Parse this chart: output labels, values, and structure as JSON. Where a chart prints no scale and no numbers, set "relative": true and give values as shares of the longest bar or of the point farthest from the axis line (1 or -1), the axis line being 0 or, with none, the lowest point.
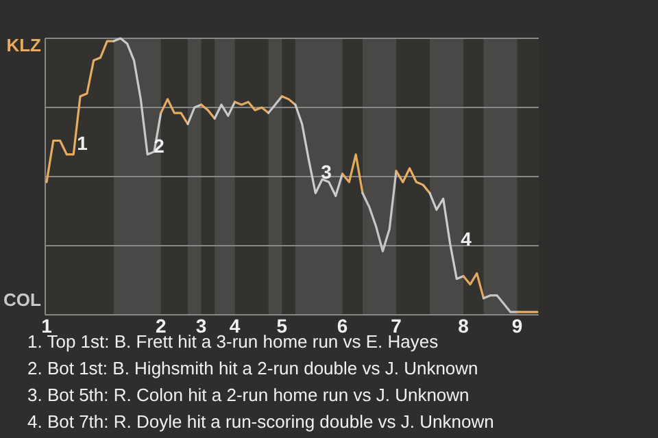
{
  "chart_data": {
    "type": "line",
    "relative": true,
    "grid": true,
    "marker": "none",
    "line_style": "solid",
    "categories": [
      "1",
      null,
      null,
      null,
      null,
      null,
      null,
      null,
      null,
      null,
      null,
      null,
      null,
      null,
      null,
      null,
      null,
      "2",
      null,
      null,
      null,
      null,
      null,
      "3",
      null,
      null,
      null,
      null,
      "4",
      null,
      null,
      null,
      null,
      null,
      null,
      "5",
      null,
      null,
      null,
      null,
      null,
      null,
      null,
      null,
      "6",
      null,
      null,
      null,
      null,
      null,
      null,
      null,
      "7",
      null,
      null,
      null,
      null,
      null,
      null,
      null,
      null,
      null,
      "8",
      null,
      null,
      null,
      null,
      null,
      null,
      null,
      "9",
      null,
      null,
      null
    ],
    "series": [
      {
        "color": "#e6ac62",
        "values": [
          0.48,
          0.63,
          0.63,
          0.58,
          0.58,
          0.79,
          0.8,
          0.92,
          0.93,
          0.99,
          0.99,
          null,
          null,
          null,
          null,
          null,
          null,
          null,
          null,
          null,
          null,
          null,
          null,
          null,
          null,
          null,
          null,
          null,
          null,
          null,
          null,
          null,
          null,
          null,
          null,
          null,
          null,
          null,
          null,
          null,
          null,
          null,
          null,
          null,
          null,
          null,
          null,
          null,
          null,
          null,
          null,
          null,
          null,
          null,
          null,
          null,
          null,
          null,
          null,
          null,
          null,
          null,
          null,
          null,
          null,
          null,
          null,
          null,
          null,
          null,
          null,
          null,
          null,
          null
        ]
      },
      {
        "color": "#c9c9c9",
        "values": [
          null,
          null,
          null,
          null,
          null,
          null,
          null,
          null,
          null,
          null,
          0.99,
          1,
          0.98,
          0.92,
          0.78,
          0.58,
          0.59,
          0.73,
          null,
          null,
          null,
          null,
          null,
          null,
          null,
          null,
          null,
          null,
          null,
          null,
          null,
          null,
          null,
          null,
          null,
          null,
          null,
          null,
          null,
          null,
          null,
          null,
          null,
          null,
          null,
          null,
          null,
          null,
          null,
          null,
          null,
          null,
          null,
          null,
          null,
          null,
          null,
          null,
          null,
          null,
          null,
          null,
          null,
          null,
          null,
          null,
          null,
          null,
          null,
          null,
          null,
          null,
          null,
          null
        ]
      },
      {
        "color": "#e5ab61",
        "values": [
          null,
          null,
          null,
          null,
          null,
          null,
          null,
          null,
          null,
          null,
          null,
          null,
          null,
          null,
          null,
          null,
          null,
          0.73,
          0.78,
          0.73,
          0.73,
          0.69,
          null,
          null,
          null,
          null,
          null,
          null,
          null,
          null,
          null,
          null,
          null,
          null,
          null,
          null,
          null,
          null,
          null,
          null,
          null,
          null,
          null,
          null,
          null,
          null,
          null,
          null,
          null,
          null,
          null,
          null,
          null,
          null,
          null,
          null,
          null,
          null,
          null,
          null,
          null,
          null,
          null,
          null,
          null,
          null,
          null,
          null,
          null,
          null,
          null,
          null,
          null,
          null
        ]
      },
      {
        "color": "#c8c8c8",
        "values": [
          null,
          null,
          null,
          null,
          null,
          null,
          null,
          null,
          null,
          null,
          null,
          null,
          null,
          null,
          null,
          null,
          null,
          null,
          null,
          null,
          null,
          0.69,
          0.75,
          0.76,
          null,
          null,
          null,
          null,
          null,
          null,
          null,
          null,
          null,
          null,
          null,
          null,
          null,
          null,
          null,
          null,
          null,
          null,
          null,
          null,
          null,
          null,
          null,
          null,
          null,
          null,
          null,
          null,
          null,
          null,
          null,
          null,
          null,
          null,
          null,
          null,
          null,
          null,
          null,
          null,
          null,
          null,
          null,
          null,
          null,
          null,
          null,
          null,
          null,
          null
        ]
      },
      {
        "color": "#e7ad63",
        "values": [
          null,
          null,
          null,
          null,
          null,
          null,
          null,
          null,
          null,
          null,
          null,
          null,
          null,
          null,
          null,
          null,
          null,
          null,
          null,
          null,
          null,
          null,
          null,
          0.76,
          0.74,
          0.71,
          null,
          null,
          null,
          null,
          null,
          null,
          null,
          null,
          null,
          null,
          null,
          null,
          null,
          null,
          null,
          null,
          null,
          null,
          null,
          null,
          null,
          null,
          null,
          null,
          null,
          null,
          null,
          null,
          null,
          null,
          null,
          null,
          null,
          null,
          null,
          null,
          null,
          null,
          null,
          null,
          null,
          null,
          null,
          null,
          null,
          null,
          null,
          null
        ]
      },
      {
        "color": "#cacaca",
        "values": [
          null,
          null,
          null,
          null,
          null,
          null,
          null,
          null,
          null,
          null,
          null,
          null,
          null,
          null,
          null,
          null,
          null,
          null,
          null,
          null,
          null,
          null,
          null,
          null,
          null,
          0.71,
          0.76,
          0.72,
          0.77,
          null,
          null,
          null,
          null,
          null,
          null,
          null,
          null,
          null,
          null,
          null,
          null,
          null,
          null,
          null,
          null,
          null,
          null,
          null,
          null,
          null,
          null,
          null,
          null,
          null,
          null,
          null,
          null,
          null,
          null,
          null,
          null,
          null,
          null,
          null,
          null,
          null,
          null,
          null,
          null,
          null,
          null,
          null,
          null,
          null
        ]
      },
      {
        "color": "#e4aa60",
        "values": [
          null,
          null,
          null,
          null,
          null,
          null,
          null,
          null,
          null,
          null,
          null,
          null,
          null,
          null,
          null,
          null,
          null,
          null,
          null,
          null,
          null,
          null,
          null,
          null,
          null,
          null,
          null,
          null,
          0.77,
          0.76,
          0.77,
          0.74,
          0.75,
          0.73,
          null,
          null,
          null,
          null,
          null,
          null,
          null,
          null,
          null,
          null,
          null,
          null,
          null,
          null,
          null,
          null,
          null,
          null,
          null,
          null,
          null,
          null,
          null,
          null,
          null,
          null,
          null,
          null,
          null,
          null,
          null,
          null,
          null,
          null,
          null,
          null,
          null,
          null,
          null,
          null
        ]
      },
      {
        "color": "#c7c7c7",
        "values": [
          null,
          null,
          null,
          null,
          null,
          null,
          null,
          null,
          null,
          null,
          null,
          null,
          null,
          null,
          null,
          null,
          null,
          null,
          null,
          null,
          null,
          null,
          null,
          null,
          null,
          null,
          null,
          null,
          null,
          null,
          null,
          null,
          null,
          0.73,
          0.76,
          0.79,
          null,
          null,
          null,
          null,
          null,
          null,
          null,
          null,
          null,
          null,
          null,
          null,
          null,
          null,
          null,
          null,
          null,
          null,
          null,
          null,
          null,
          null,
          null,
          null,
          null,
          null,
          null,
          null,
          null,
          null,
          null,
          null,
          null,
          null,
          null,
          null,
          null,
          null
        ]
      },
      {
        "color": "#e8ae64",
        "values": [
          null,
          null,
          null,
          null,
          null,
          null,
          null,
          null,
          null,
          null,
          null,
          null,
          null,
          null,
          null,
          null,
          null,
          null,
          null,
          null,
          null,
          null,
          null,
          null,
          null,
          null,
          null,
          null,
          null,
          null,
          null,
          null,
          null,
          null,
          null,
          0.79,
          0.78,
          0.76,
          null,
          null,
          null,
          null,
          null,
          null,
          null,
          null,
          null,
          null,
          null,
          null,
          null,
          null,
          null,
          null,
          null,
          null,
          null,
          null,
          null,
          null,
          null,
          null,
          null,
          null,
          null,
          null,
          null,
          null,
          null,
          null,
          null,
          null,
          null,
          null
        ]
      },
      {
        "color": "#cbcbcb",
        "values": [
          null,
          null,
          null,
          null,
          null,
          null,
          null,
          null,
          null,
          null,
          null,
          null,
          null,
          null,
          null,
          null,
          null,
          null,
          null,
          null,
          null,
          null,
          null,
          null,
          null,
          null,
          null,
          null,
          null,
          null,
          null,
          null,
          null,
          null,
          null,
          null,
          null,
          0.76,
          0.69,
          0.56,
          0.44,
          0.49,
          0.48,
          0.43,
          0.51,
          null,
          null,
          null,
          null,
          null,
          null,
          null,
          null,
          null,
          null,
          null,
          null,
          null,
          null,
          null,
          null,
          null,
          null,
          null,
          null,
          null,
          null,
          null,
          null,
          null,
          null,
          null,
          null,
          null
        ]
      },
      {
        "color": "#e3a95f",
        "values": [
          null,
          null,
          null,
          null,
          null,
          null,
          null,
          null,
          null,
          null,
          null,
          null,
          null,
          null,
          null,
          null,
          null,
          null,
          null,
          null,
          null,
          null,
          null,
          null,
          null,
          null,
          null,
          null,
          null,
          null,
          null,
          null,
          null,
          null,
          null,
          null,
          null,
          null,
          null,
          null,
          null,
          null,
          null,
          null,
          0.51,
          0.48,
          0.58,
          0.44,
          null,
          null,
          null,
          null,
          null,
          null,
          null,
          null,
          null,
          null,
          null,
          null,
          null,
          null,
          null,
          null,
          null,
          null,
          null,
          null,
          null,
          null,
          null,
          null,
          null,
          null
        ]
      },
      {
        "color": "#c6c6c6",
        "values": [
          null,
          null,
          null,
          null,
          null,
          null,
          null,
          null,
          null,
          null,
          null,
          null,
          null,
          null,
          null,
          null,
          null,
          null,
          null,
          null,
          null,
          null,
          null,
          null,
          null,
          null,
          null,
          null,
          null,
          null,
          null,
          null,
          null,
          null,
          null,
          null,
          null,
          null,
          null,
          null,
          null,
          null,
          null,
          null,
          null,
          null,
          null,
          0.44,
          0.39,
          0.32,
          0.23,
          0.31,
          0.52,
          null,
          null,
          null,
          null,
          null,
          null,
          null,
          null,
          null,
          null,
          null,
          null,
          null,
          null,
          null,
          null,
          null,
          null,
          null,
          null,
          null
        ]
      },
      {
        "color": "#e9af65",
        "values": [
          null,
          null,
          null,
          null,
          null,
          null,
          null,
          null,
          null,
          null,
          null,
          null,
          null,
          null,
          null,
          null,
          null,
          null,
          null,
          null,
          null,
          null,
          null,
          null,
          null,
          null,
          null,
          null,
          null,
          null,
          null,
          null,
          null,
          null,
          null,
          null,
          null,
          null,
          null,
          null,
          null,
          null,
          null,
          null,
          null,
          null,
          null,
          null,
          null,
          null,
          null,
          null,
          0.52,
          0.48,
          0.53,
          0.48,
          0.47,
          0.44,
          null,
          null,
          null,
          null,
          null,
          null,
          null,
          null,
          null,
          null,
          null,
          null,
          null,
          null,
          null,
          null
        ]
      },
      {
        "color": "#cccccc",
        "values": [
          null,
          null,
          null,
          null,
          null,
          null,
          null,
          null,
          null,
          null,
          null,
          null,
          null,
          null,
          null,
          null,
          null,
          null,
          null,
          null,
          null,
          null,
          null,
          null,
          null,
          null,
          null,
          null,
          null,
          null,
          null,
          null,
          null,
          null,
          null,
          null,
          null,
          null,
          null,
          null,
          null,
          null,
          null,
          null,
          null,
          null,
          null,
          null,
          null,
          null,
          null,
          null,
          null,
          null,
          null,
          null,
          null,
          0.44,
          0.38,
          0.42,
          0.26,
          0.13,
          0.14,
          null,
          null,
          null,
          null,
          null,
          null,
          null,
          null,
          null,
          null,
          null
        ]
      },
      {
        "color": "#e2a85e",
        "values": [
          null,
          null,
          null,
          null,
          null,
          null,
          null,
          null,
          null,
          null,
          null,
          null,
          null,
          null,
          null,
          null,
          null,
          null,
          null,
          null,
          null,
          null,
          null,
          null,
          null,
          null,
          null,
          null,
          null,
          null,
          null,
          null,
          null,
          null,
          null,
          null,
          null,
          null,
          null,
          null,
          null,
          null,
          null,
          null,
          null,
          null,
          null,
          null,
          null,
          null,
          null,
          null,
          null,
          null,
          null,
          null,
          null,
          null,
          null,
          null,
          null,
          null,
          0.14,
          0.11,
          0.15,
          0.06,
          null,
          null,
          null,
          null,
          null,
          null,
          null,
          null
        ]
      },
      {
        "color": "#c5c5c5",
        "values": [
          null,
          null,
          null,
          null,
          null,
          null,
          null,
          null,
          null,
          null,
          null,
          null,
          null,
          null,
          null,
          null,
          null,
          null,
          null,
          null,
          null,
          null,
          null,
          null,
          null,
          null,
          null,
          null,
          null,
          null,
          null,
          null,
          null,
          null,
          null,
          null,
          null,
          null,
          null,
          null,
          null,
          null,
          null,
          null,
          null,
          null,
          null,
          null,
          null,
          null,
          null,
          null,
          null,
          null,
          null,
          null,
          null,
          null,
          null,
          null,
          null,
          null,
          null,
          null,
          null,
          0.06,
          0.07,
          0.07,
          0.04,
          0.01,
          0.01,
          null,
          null,
          null
        ]
      },
      {
        "color": "#eab066",
        "values": [
          null,
          null,
          null,
          null,
          null,
          null,
          null,
          null,
          null,
          null,
          null,
          null,
          null,
          null,
          null,
          null,
          null,
          null,
          null,
          null,
          null,
          null,
          null,
          null,
          null,
          null,
          null,
          null,
          null,
          null,
          null,
          null,
          null,
          null,
          null,
          null,
          null,
          null,
          null,
          null,
          null,
          null,
          null,
          null,
          null,
          null,
          null,
          null,
          null,
          null,
          null,
          null,
          null,
          null,
          null,
          null,
          null,
          null,
          null,
          null,
          null,
          null,
          null,
          null,
          null,
          null,
          null,
          null,
          null,
          null,
          0.01,
          0.01,
          0.01,
          0.01
        ]
      }
    ],
    "annotations": [
      "KLZ",
      "COL",
      "1",
      "2",
      "3",
      "4",
      "1. Top 1st: B. Frett hit a 3-run home run vs E. Hayes",
      "2. Bot 1st: B. Highsmith hit a 2-run double vs J. Unknown",
      "3. Bot 5th: R. Colon hit a 2-run home run vs J. Unknown",
      "4. Bot 7th: R. Doyle hit a run-scoring double vs J. Unknown"
    ]
  }
}
